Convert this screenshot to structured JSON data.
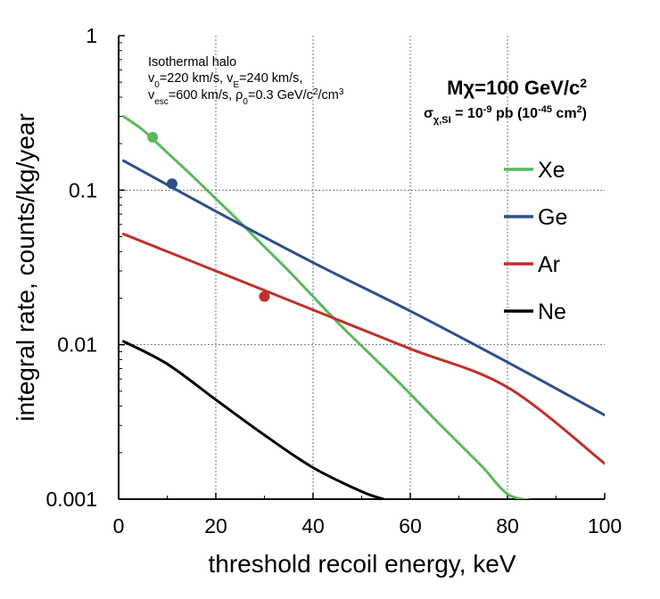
{
  "chart_data": {
    "type": "line",
    "title": "",
    "xlabel": "threshold recoil energy, keV",
    "ylabel": "integral rate, counts/kg/year",
    "xlim": [
      0,
      100
    ],
    "ylim": [
      0.001,
      1
    ],
    "yscale": "log",
    "grid": true,
    "x_ticks": [
      0,
      20,
      40,
      60,
      80,
      100
    ],
    "x_tick_labels": [
      "0",
      "20",
      "40",
      "60",
      "80",
      "100"
    ],
    "y_ticks": [
      0.001,
      0.01,
      0.1,
      1
    ],
    "y_tick_labels": [
      "0.001",
      "0.01",
      "0.1",
      "1"
    ],
    "annotations": {
      "halo_title": "Isothermal halo",
      "halo_line2": {
        "v0": "v",
        "v0_sub": "0",
        "v0_val": "=220 km/s, ",
        "vE": "v",
        "vE_sub": "E",
        "vE_val": "=240 km/s,"
      },
      "halo_line3": {
        "vesc": "v",
        "vesc_sub": "esc",
        "vesc_val": "=600 km/s, ",
        "rho": "ρ",
        "rho_sub": "0",
        "rho_val": "=0.3 GeV/c",
        "rho_sup": "2",
        "rho_tail": "/cm",
        "rho_tail_sup": "3"
      },
      "mass": {
        "main": "Mχ=100 GeV/c",
        "sup": "2"
      },
      "cross_section": {
        "sigma": "σ",
        "sub": "χ,SI",
        "mid": " = 10",
        "exp1": "-9",
        "unit": " pb (10",
        "exp2": "-45",
        "unit2": " cm",
        "exp3": "2",
        "close": ")"
      }
    },
    "legend_position": "right",
    "series": [
      {
        "name": "Xe",
        "color": "#5cb85c",
        "x": [
          1,
          5,
          10,
          15,
          20,
          25,
          30,
          35,
          40,
          45,
          50,
          55,
          60,
          65,
          70,
          75,
          80,
          85
        ],
        "values": [
          0.3,
          0.245,
          0.175,
          0.125,
          0.088,
          0.062,
          0.043,
          0.03,
          0.0205,
          0.014,
          0.0098,
          0.0069,
          0.0048,
          0.0033,
          0.0023,
          0.0016,
          0.00108,
          0.00098
        ],
        "marker": {
          "x": 7,
          "y": 0.22
        }
      },
      {
        "name": "Ge",
        "color": "#2e4f8a",
        "x": [
          1,
          20,
          40,
          60,
          80,
          100
        ],
        "values": [
          0.155,
          0.073,
          0.034,
          0.0165,
          0.0077,
          0.0035
        ],
        "marker": {
          "x": 11,
          "y": 0.11
        }
      },
      {
        "name": "Ar",
        "color": "#c0312b",
        "x": [
          1,
          20,
          40,
          60,
          80,
          100
        ],
        "values": [
          0.052,
          0.03,
          0.0168,
          0.0094,
          0.0053,
          0.0017
        ],
        "marker": {
          "x": 30,
          "y": 0.0205
        }
      },
      {
        "name": "Ne",
        "color": "#000000",
        "x": [
          1,
          10,
          20,
          30,
          40,
          50,
          54.5
        ],
        "values": [
          0.0105,
          0.0075,
          0.0044,
          0.0026,
          0.0016,
          0.00112,
          0.001
        ],
        "marker": null
      }
    ]
  }
}
